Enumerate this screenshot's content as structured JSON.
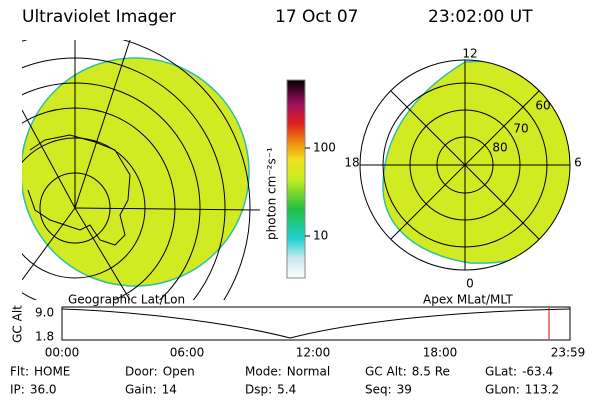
{
  "header": {
    "title": "Ultraviolet Imager",
    "date": "17 Oct 07",
    "time": "23:02:00 UT"
  },
  "left_panel": {
    "label": "Geographic Lat/Lon"
  },
  "right_panel": {
    "label": "Apex MLat/MLT",
    "mlt_labels": [
      "12",
      "18",
      "6",
      "0"
    ],
    "lat_labels": [
      "60",
      "70",
      "80"
    ]
  },
  "colorbar": {
    "label": "photon cm⁻²s⁻¹",
    "ticks": [
      "100",
      "10"
    ]
  },
  "timeline": {
    "axis_label": "GC Alt",
    "y_labels": [
      "9.0",
      "1.8"
    ],
    "x_labels": [
      "00:00",
      "06:00",
      "12:00",
      "18:00",
      "23:59"
    ]
  },
  "footer": [
    [
      {
        "label": "Flt:",
        "value": "HOME"
      },
      {
        "label": "IP:",
        "value": "36.0"
      }
    ],
    [
      {
        "label": "Door:",
        "value": "Open"
      },
      {
        "label": "Gain:",
        "value": "14"
      }
    ],
    [
      {
        "label": "Mode:",
        "value": "Normal"
      },
      {
        "label": "Dsp:",
        "value": "5.4"
      }
    ],
    [
      {
        "label": "GC Alt:",
        "value": "8.5 Re"
      },
      {
        "label": "Seq:",
        "value": "39"
      }
    ],
    [
      {
        "label": "GLat:",
        "value": "-63.4"
      },
      {
        "label": "GLon:",
        "value": "113.2"
      }
    ]
  ]
}
